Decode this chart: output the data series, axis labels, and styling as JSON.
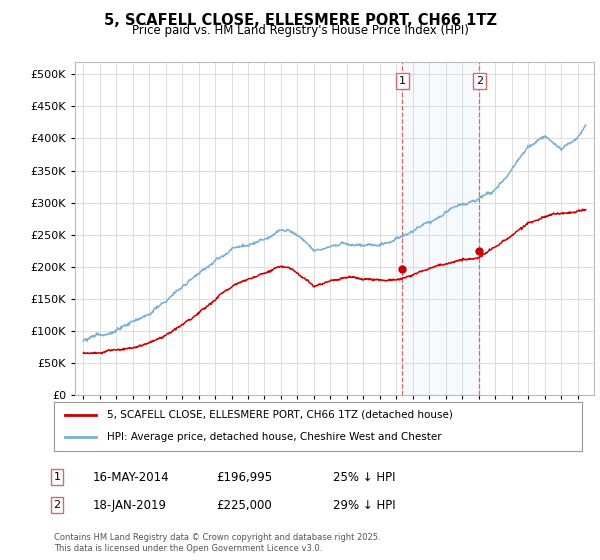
{
  "title": "5, SCAFELL CLOSE, ELLESMERE PORT, CH66 1TZ",
  "subtitle": "Price paid vs. HM Land Registry's House Price Index (HPI)",
  "ylim": [
    0,
    520000
  ],
  "yticks": [
    0,
    50000,
    100000,
    150000,
    200000,
    250000,
    300000,
    350000,
    400000,
    450000,
    500000
  ],
  "background_color": "#ffffff",
  "grid_color": "#dddddd",
  "legend_entry1": "5, SCAFELL CLOSE, ELLESMERE PORT, CH66 1TZ (detached house)",
  "legend_entry2": "HPI: Average price, detached house, Cheshire West and Chester",
  "line1_color": "#cc0000",
  "line2_color": "#7ab0d4",
  "vline_color": "#dd6666",
  "marker1_date": 2014.37,
  "marker1_price": 196995,
  "marker2_date": 2019.05,
  "marker2_price": 225000,
  "footer": "Contains HM Land Registry data © Crown copyright and database right 2025.\nThis data is licensed under the Open Government Licence v3.0."
}
